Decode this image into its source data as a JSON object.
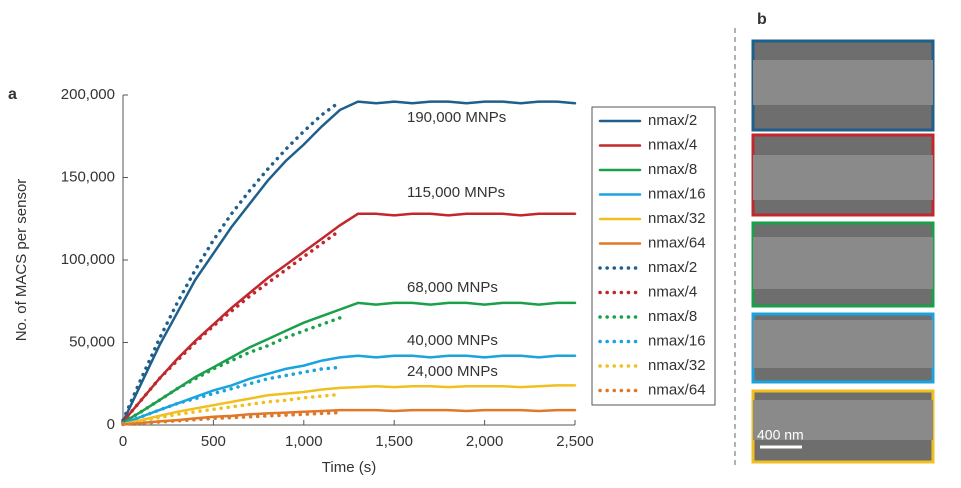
{
  "chart_data": {
    "type": "line",
    "panel_label": "a",
    "xlabel": "Time (s)",
    "ylabel": "No. of MACS per sensor",
    "x": [
      0,
      100,
      200,
      300,
      400,
      500,
      600,
      700,
      800,
      900,
      1000,
      1100,
      1200,
      1300,
      1400,
      1500,
      1600,
      1700,
      1800,
      1900,
      2000,
      2100,
      2200,
      2300,
      2400,
      2500
    ],
    "xlim": [
      0,
      2500
    ],
    "xticks": [
      0,
      500,
      {
        "value": 1000,
        "label": "1,000"
      },
      {
        "value": 1500,
        "label": "1,500"
      },
      {
        "value": 2000,
        "label": "2,000"
      },
      {
        "value": 2500,
        "label": "2,500"
      }
    ],
    "ylim": [
      0,
      200000
    ],
    "yticks": [
      0,
      {
        "value": 50000,
        "label": "50,000"
      },
      {
        "value": 100000,
        "label": "100,000"
      },
      {
        "value": 150000,
        "label": "150,000"
      },
      {
        "value": 200000,
        "label": "200,000"
      }
    ],
    "series": [
      {
        "name": "nmax/2",
        "color": "#1f5f8b",
        "style": "solid",
        "values": [
          2000,
          25000,
          48000,
          68000,
          88000,
          104000,
          120000,
          134000,
          148000,
          160000,
          170000,
          181000,
          191000,
          196000,
          195000,
          196000,
          195000,
          196000,
          196000,
          195000,
          196000,
          196000,
          195000,
          196000,
          196000,
          195000
        ]
      },
      {
        "name": "nmax/4",
        "color": "#c0282d",
        "style": "solid",
        "values": [
          2000,
          15000,
          28000,
          40000,
          51000,
          61000,
          71000,
          80000,
          89000,
          97000,
          105000,
          113000,
          121000,
          128000,
          128000,
          127000,
          128000,
          128000,
          127000,
          128000,
          128000,
          128000,
          127000,
          128000,
          128000,
          128000
        ]
      },
      {
        "name": "nmax/8",
        "color": "#1a9f4b",
        "style": "solid",
        "values": [
          1500,
          8000,
          15000,
          22000,
          29000,
          35000,
          41000,
          47000,
          52000,
          57000,
          62000,
          66000,
          70000,
          74000,
          73000,
          74000,
          74000,
          73000,
          74000,
          74000,
          73000,
          74000,
          74000,
          73000,
          74000,
          74000
        ]
      },
      {
        "name": "nmax/16",
        "color": "#1aa3dd",
        "style": "solid",
        "values": [
          1000,
          5000,
          9000,
          13000,
          17000,
          21000,
          24000,
          28000,
          31000,
          34000,
          36000,
          39000,
          41000,
          42000,
          41000,
          42000,
          42000,
          41000,
          42000,
          42000,
          41000,
          42000,
          42000,
          41000,
          42000,
          42000
        ]
      },
      {
        "name": "nmax/32",
        "color": "#f0c020",
        "style": "solid",
        "values": [
          500,
          3000,
          5500,
          8000,
          10000,
          12000,
          14000,
          16000,
          18000,
          19000,
          20000,
          21500,
          22500,
          23000,
          23500,
          23000,
          23500,
          23500,
          23000,
          23500,
          23500,
          23500,
          23000,
          23500,
          24000,
          24000
        ]
      },
      {
        "name": "nmax/64",
        "color": "#e0782a",
        "style": "solid",
        "values": [
          300,
          1200,
          2200,
          3000,
          4000,
          5000,
          5500,
          6500,
          7000,
          7500,
          8000,
          8500,
          9000,
          9000,
          9000,
          8500,
          9000,
          9000,
          9000,
          8500,
          9000,
          9000,
          9000,
          8500,
          9000,
          9000
        ]
      },
      {
        "name": "nmax/2",
        "color": "#1f5f8b",
        "style": "dotted",
        "values": [
          3000,
          28000,
          52000,
          74000,
          94000,
          112000,
          128000,
          142000,
          155000,
          167000,
          178000,
          188000,
          196000,
          null,
          null,
          null,
          null,
          null,
          null,
          null,
          null,
          null,
          null,
          null,
          null,
          null
        ]
      },
      {
        "name": "nmax/4",
        "color": "#c0282d",
        "style": "dotted",
        "values": [
          2000,
          15000,
          28000,
          39000,
          50000,
          60000,
          69000,
          78000,
          86000,
          94000,
          102000,
          110000,
          118000,
          null,
          null,
          null,
          null,
          null,
          null,
          null,
          null,
          null,
          null,
          null,
          null,
          null
        ]
      },
      {
        "name": "nmax/8",
        "color": "#1a9f4b",
        "style": "dotted",
        "values": [
          1500,
          8000,
          15000,
          22000,
          28000,
          34000,
          39000,
          44000,
          48000,
          53000,
          57000,
          61000,
          65000,
          null,
          null,
          null,
          null,
          null,
          null,
          null,
          null,
          null,
          null,
          null,
          null,
          null
        ]
      },
      {
        "name": "nmax/16",
        "color": "#1aa3dd",
        "style": "dotted",
        "values": [
          1000,
          5000,
          9000,
          13000,
          16000,
          19000,
          22000,
          25000,
          28000,
          30000,
          32000,
          34000,
          35000,
          null,
          null,
          null,
          null,
          null,
          null,
          null,
          null,
          null,
          null,
          null,
          null,
          null
        ]
      },
      {
        "name": "nmax/32",
        "color": "#f0c020",
        "style": "dotted",
        "values": [
          500,
          2500,
          4500,
          6500,
          8000,
          9500,
          11000,
          12500,
          14000,
          15000,
          16500,
          17500,
          18500,
          null,
          null,
          null,
          null,
          null,
          null,
          null,
          null,
          null,
          null,
          null,
          null,
          null
        ]
      },
      {
        "name": "nmax/64",
        "color": "#e0782a",
        "style": "dotted",
        "values": [
          300,
          1000,
          1800,
          2500,
          3200,
          4000,
          4500,
          5000,
          5500,
          6000,
          6500,
          7000,
          7500,
          null,
          null,
          null,
          null,
          null,
          null,
          null,
          null,
          null,
          null,
          null,
          null,
          null
        ]
      }
    ],
    "annotations": [
      "190,000 MNPs",
      "115,000 MNPs",
      "68,000 MNPs",
      "40,000 MNPs",
      "24,000 MNPs"
    ]
  },
  "panel_b": {
    "label": "b",
    "scale_bar": "400 nm"
  }
}
